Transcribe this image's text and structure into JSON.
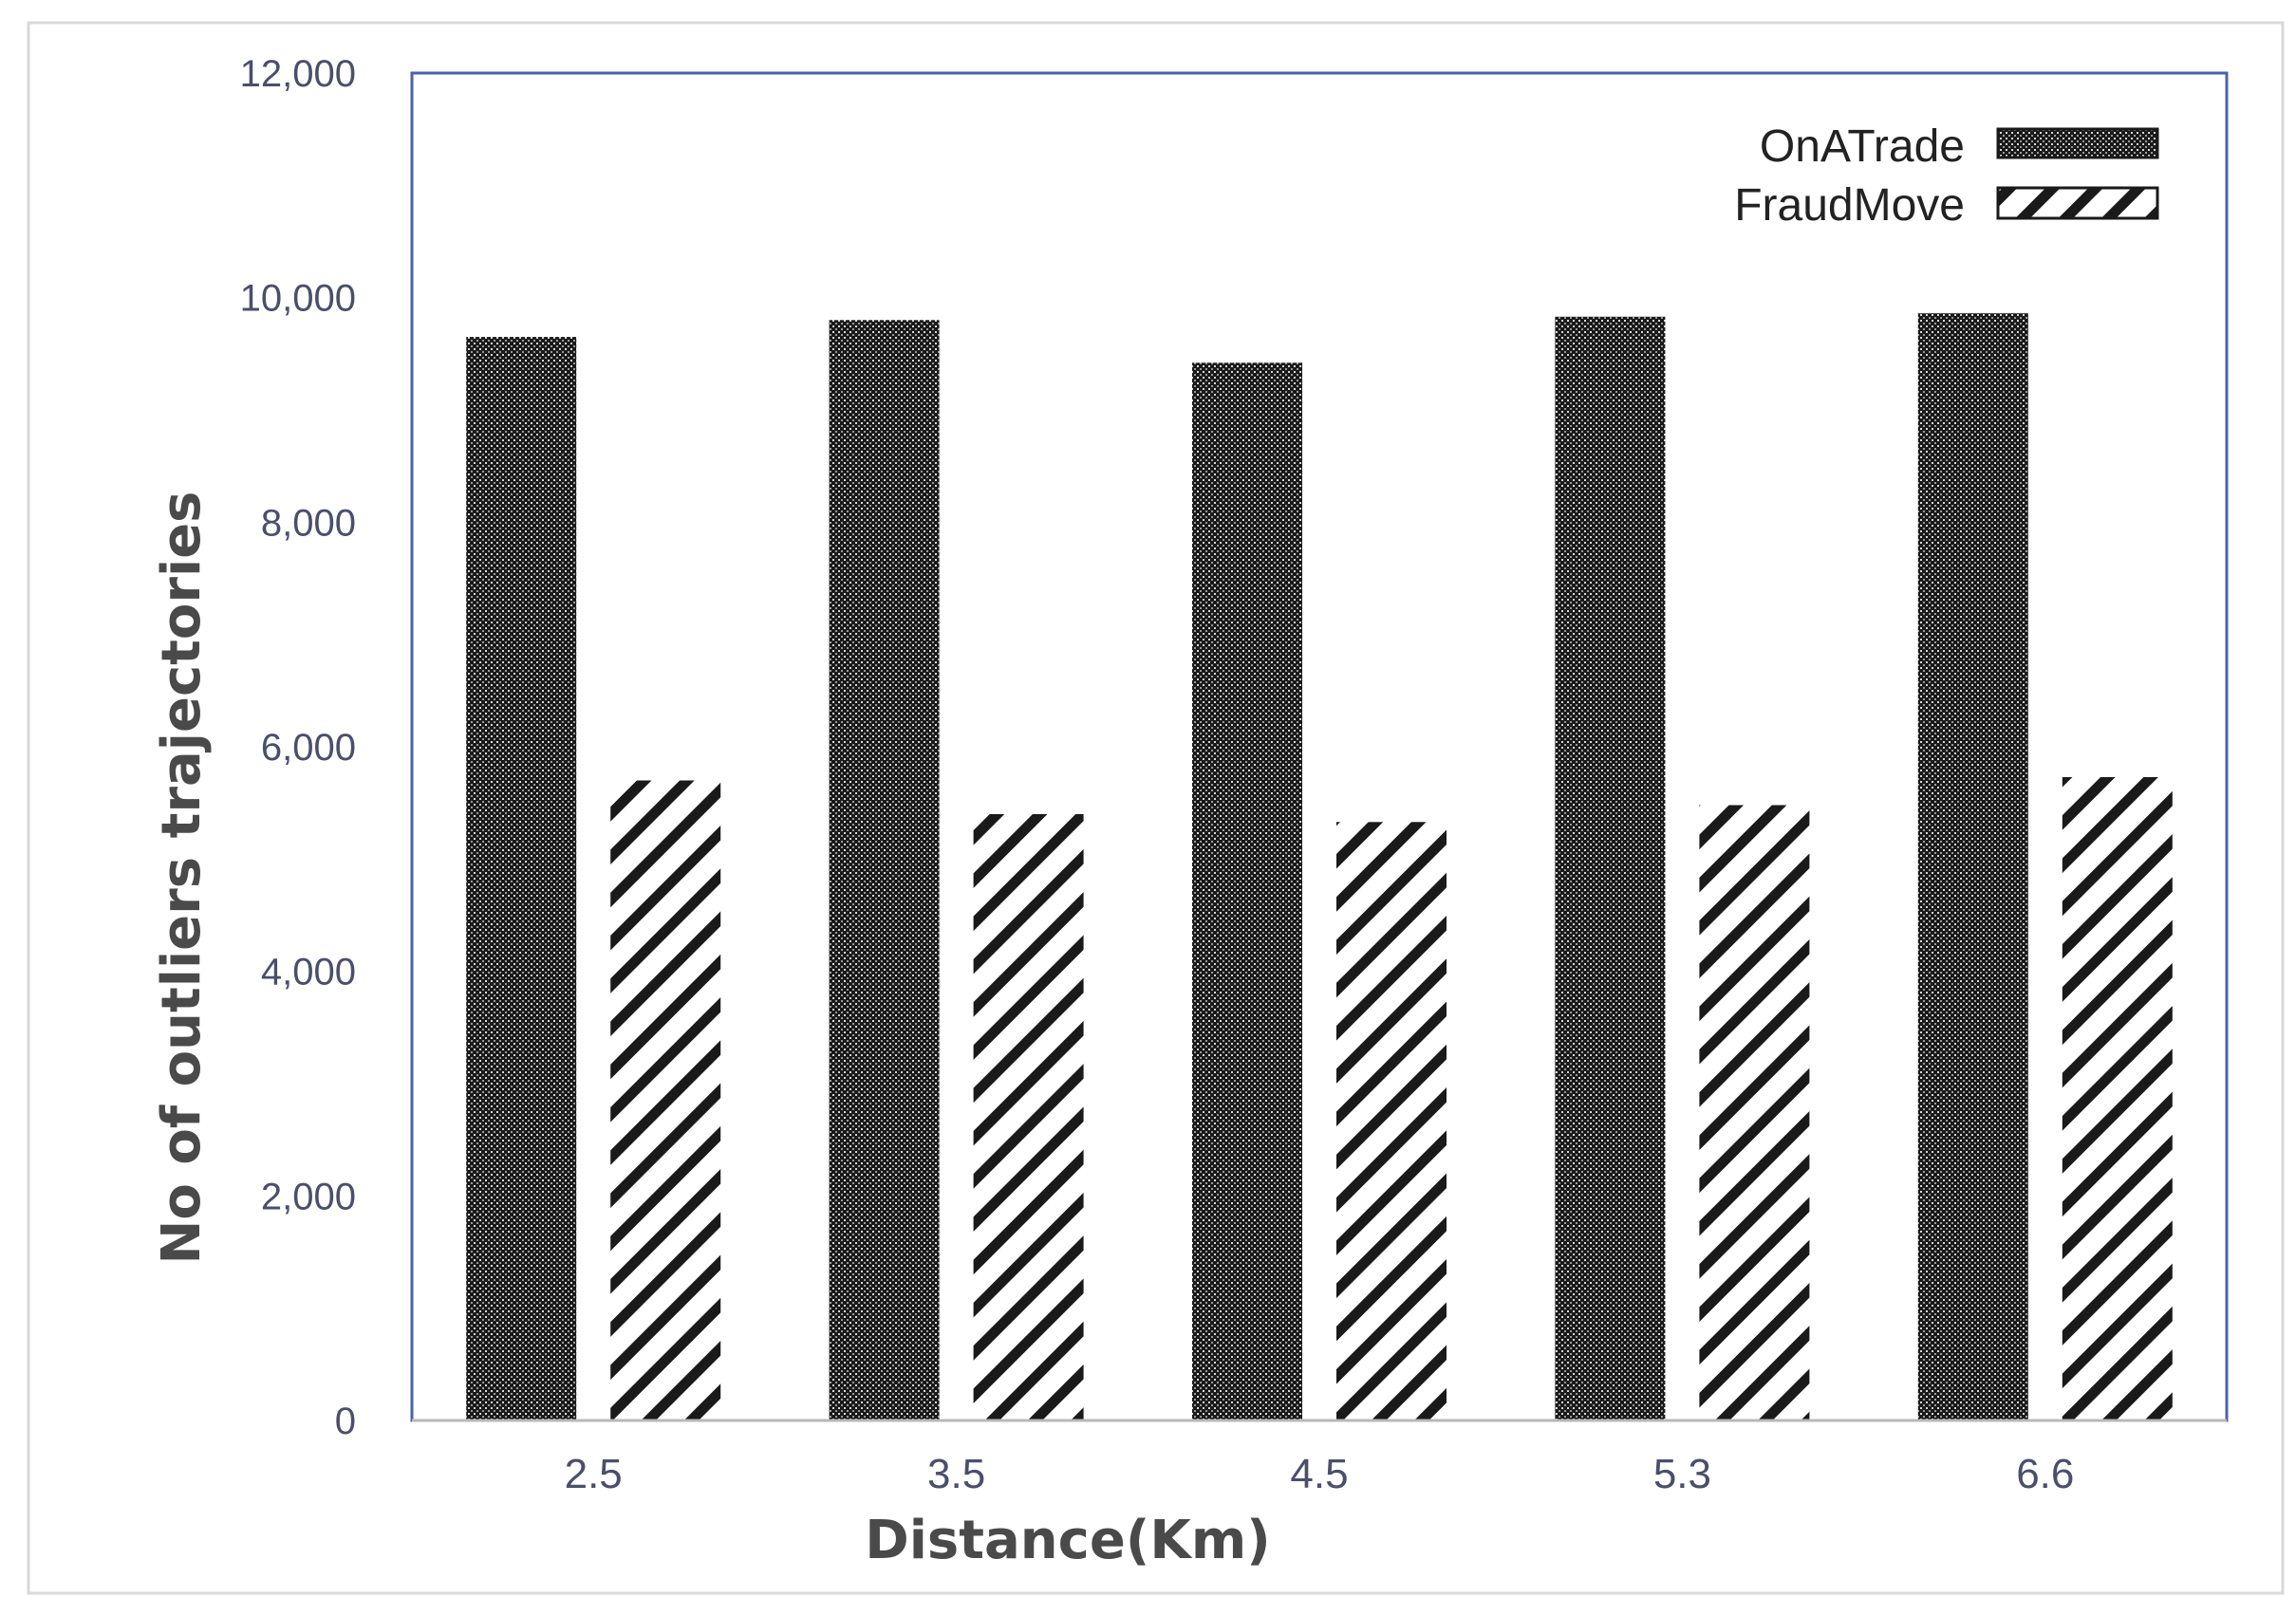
{
  "chart_data": {
    "type": "bar",
    "categories": [
      "2.5",
      "3.5",
      "4.5",
      "5.3",
      "6.6"
    ],
    "series": [
      {
        "name": "OnATrade",
        "values": [
          9650,
          9800,
          9420,
          9830,
          9860
        ],
        "pattern": "dots"
      },
      {
        "name": "FraudMove",
        "values": [
          5700,
          5400,
          5330,
          5480,
          5730
        ],
        "pattern": "diagonal-stripes"
      }
    ],
    "title": "",
    "xlabel": "Distance(Km)",
    "ylabel": "No of outliers trajectories",
    "ylim": [
      0,
      12000
    ],
    "yticks": [
      "0",
      "2,000",
      "4,000",
      "6,000",
      "8,000",
      "10,000",
      "12,000"
    ],
    "grid": false,
    "legend": "top-right",
    "colors": {
      "plot_border": "#4a62a8",
      "bar_dark": "#1a1a1a",
      "bar_light": "#ffffff",
      "tick_text": "#4a4f6a"
    }
  }
}
